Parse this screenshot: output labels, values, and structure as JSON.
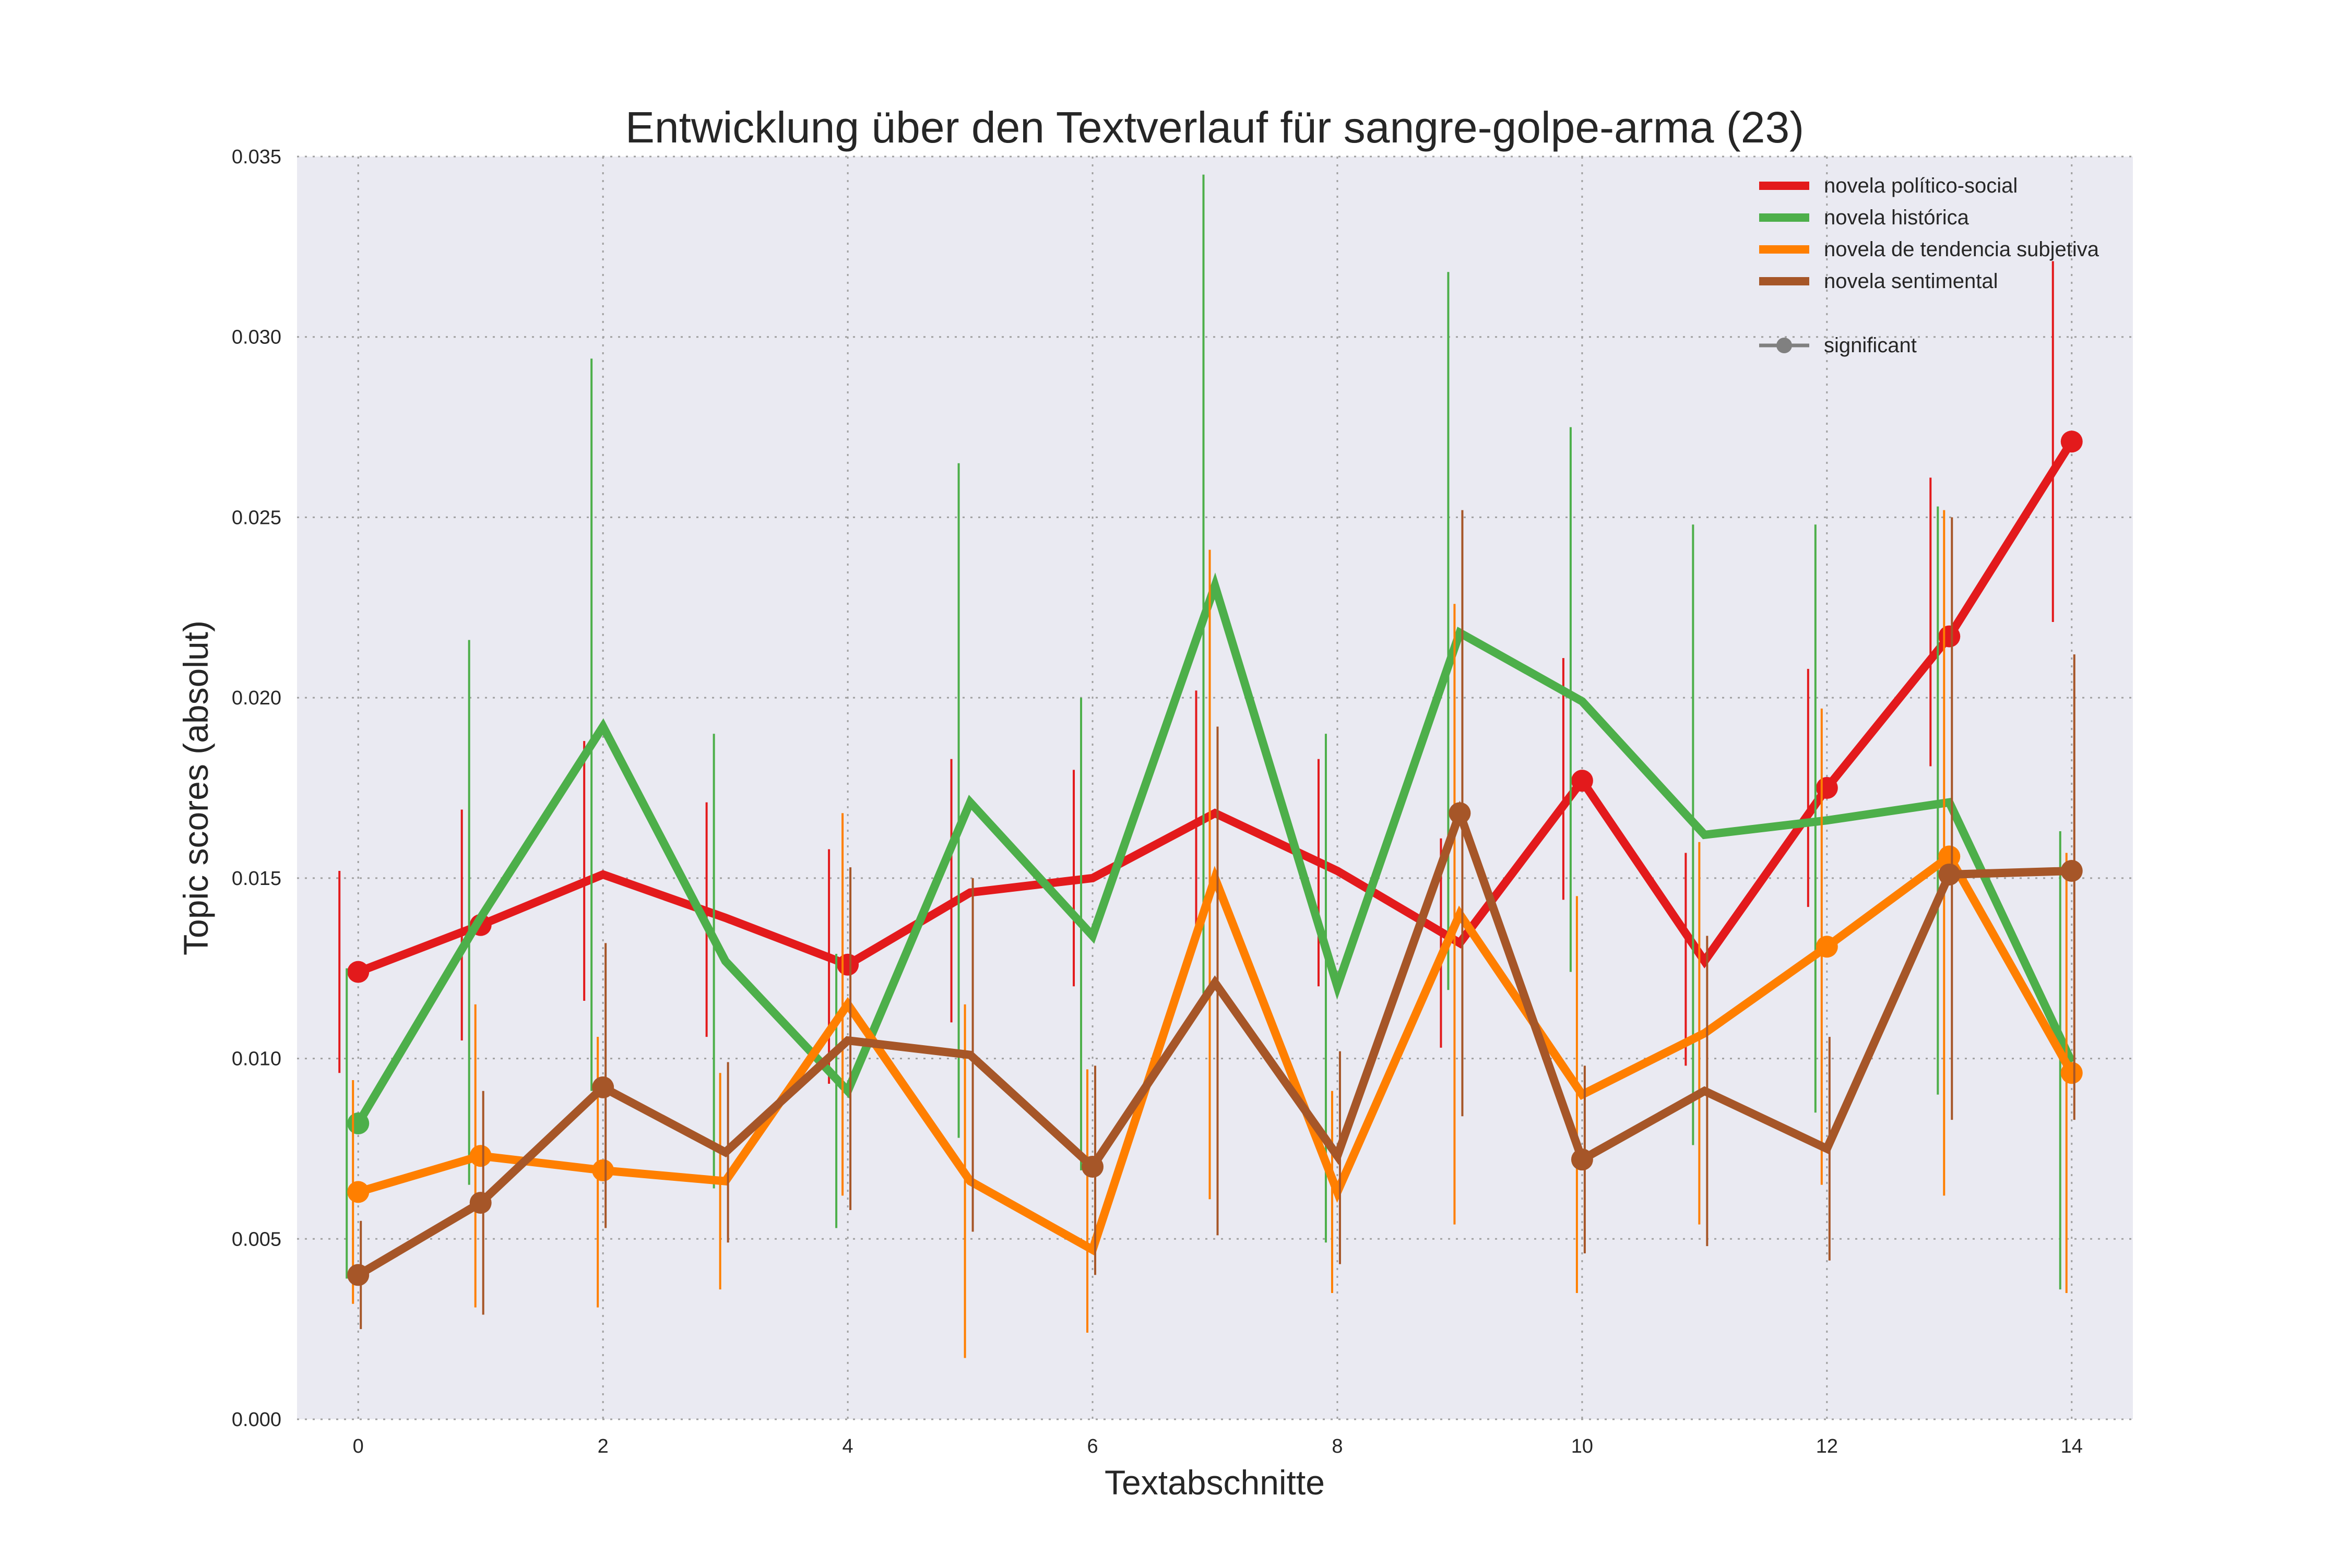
{
  "chart_data": {
    "type": "line",
    "title": "Entwicklung über den Textverlauf für sangre-golpe-arma (23)",
    "xlabel": "Textabschnitte",
    "ylabel": "Topic scores (absolut)",
    "xlim": [
      -0.5,
      14.5
    ],
    "ylim": [
      0,
      0.035
    ],
    "xticks": [
      0,
      2,
      4,
      6,
      8,
      10,
      12,
      14
    ],
    "yticks": [
      0,
      0.005,
      0.01,
      0.015,
      0.02,
      0.025,
      0.03,
      0.035
    ],
    "ytick_labels": [
      "0.000",
      "0.005",
      "0.010",
      "0.015",
      "0.020",
      "0.025",
      "0.030",
      "0.035"
    ],
    "x": [
      0,
      1,
      2,
      3,
      4,
      5,
      6,
      7,
      8,
      9,
      10,
      11,
      12,
      13,
      14
    ],
    "grid": true,
    "legend_position": "top-right",
    "colors": {
      "background": "#eaeaf2",
      "grid": "#a0a0a0",
      "significant_marker": "#808080"
    },
    "significant_label": "significant",
    "series": [
      {
        "name": "novela político-social",
        "color": "#e31a1c",
        "values": [
          0.0124,
          0.0137,
          0.0151,
          0.0139,
          0.0126,
          0.0146,
          0.015,
          0.0168,
          0.0152,
          0.0132,
          0.0177,
          0.0127,
          0.0175,
          0.0217,
          0.0271
        ],
        "err_low": [
          0.0096,
          0.0105,
          0.0116,
          0.0106,
          0.0093,
          0.011,
          0.012,
          0.0136,
          0.012,
          0.0103,
          0.0144,
          0.0098,
          0.0142,
          0.0181,
          0.0221
        ],
        "err_high": [
          0.0152,
          0.0169,
          0.0188,
          0.0171,
          0.0158,
          0.0183,
          0.018,
          0.0202,
          0.0183,
          0.0161,
          0.0211,
          0.0157,
          0.0208,
          0.0261,
          0.0321
        ],
        "significant": [
          0,
          1,
          4,
          10,
          12,
          13,
          14
        ]
      },
      {
        "name": "novela histórica",
        "color": "#4daf4a",
        "values": [
          0.0082,
          0.0139,
          0.0192,
          0.0127,
          0.0091,
          0.0171,
          0.0134,
          0.0231,
          0.012,
          0.0218,
          0.0199,
          0.0162,
          0.0166,
          0.0171,
          0.0099
        ],
        "err_low": [
          0.0039,
          0.0065,
          0.0091,
          0.0064,
          0.0053,
          0.0078,
          0.0069,
          0.0118,
          0.0049,
          0.0119,
          0.0124,
          0.0076,
          0.0085,
          0.009,
          0.0036
        ],
        "err_high": [
          0.0125,
          0.0216,
          0.0294,
          0.019,
          0.0129,
          0.0265,
          0.02,
          0.0345,
          0.019,
          0.0318,
          0.0275,
          0.0248,
          0.0248,
          0.0253,
          0.0163
        ],
        "significant": [
          0
        ]
      },
      {
        "name": "novela de tendencia subjetiva",
        "color": "#ff7f00",
        "values": [
          0.0063,
          0.0073,
          0.0069,
          0.0066,
          0.0115,
          0.0066,
          0.0047,
          0.015,
          0.0063,
          0.014,
          0.009,
          0.0107,
          0.0131,
          0.0156,
          0.0096
        ],
        "err_low": [
          0.0032,
          0.0031,
          0.0031,
          0.0036,
          0.0062,
          0.0017,
          0.0024,
          0.0061,
          0.0035,
          0.0054,
          0.0035,
          0.0054,
          0.0065,
          0.0062,
          0.0035
        ],
        "err_high": [
          0.0094,
          0.0115,
          0.0106,
          0.0096,
          0.0168,
          0.0115,
          0.0097,
          0.0241,
          0.0091,
          0.0226,
          0.0145,
          0.016,
          0.0197,
          0.0252,
          0.0157
        ],
        "significant": [
          0,
          1,
          2,
          12,
          13,
          14
        ]
      },
      {
        "name": "novela sentimental",
        "color": "#a65628",
        "values": [
          0.004,
          0.006,
          0.0092,
          0.0074,
          0.0105,
          0.0101,
          0.007,
          0.0121,
          0.0073,
          0.0168,
          0.0072,
          0.0091,
          0.0075,
          0.0151,
          0.0152
        ],
        "err_low": [
          0.0025,
          0.0029,
          0.0053,
          0.0049,
          0.0058,
          0.0052,
          0.004,
          0.0051,
          0.0043,
          0.0084,
          0.0046,
          0.0048,
          0.0044,
          0.0083,
          0.0083
        ],
        "err_high": [
          0.0055,
          0.0091,
          0.0132,
          0.0099,
          0.0153,
          0.015,
          0.0098,
          0.0192,
          0.0102,
          0.0252,
          0.0098,
          0.0134,
          0.0106,
          0.025,
          0.0212
        ],
        "significant": [
          0,
          1,
          2,
          6,
          9,
          10,
          13,
          14
        ]
      }
    ]
  }
}
